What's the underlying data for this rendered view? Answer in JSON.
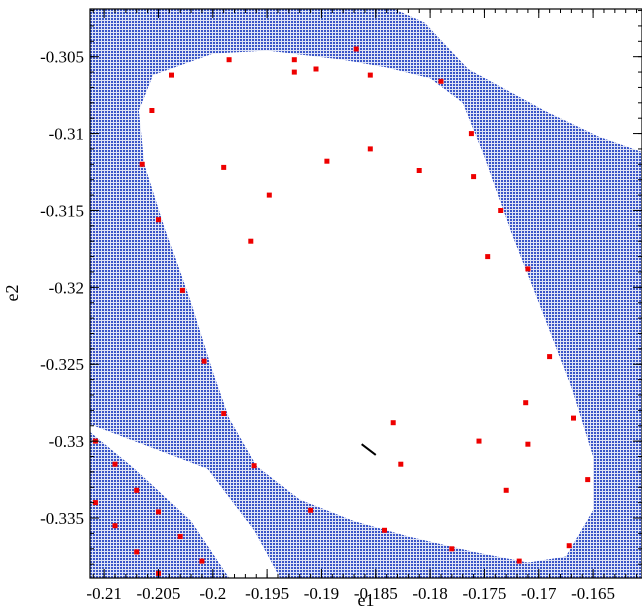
{
  "chart_data": {
    "type": "scatter",
    "title": "",
    "xlabel": "e1",
    "ylabel": "e2",
    "xlim": [
      -0.2113,
      -0.1605
    ],
    "ylim": [
      -0.3389,
      -0.3019
    ],
    "x_ticks": [
      -0.21,
      -0.205,
      -0.2,
      -0.195,
      -0.19,
      -0.185,
      -0.18,
      -0.175,
      -0.17,
      -0.165
    ],
    "x_tick_labels": [
      "-0.21",
      "-0.205",
      "-0.2",
      "-0.195",
      "-0.19",
      "-0.185",
      "-0.18",
      "-0.175",
      "-0.17",
      "-0.165"
    ],
    "y_ticks": [
      -0.305,
      -0.31,
      -0.315,
      -0.32,
      -0.325,
      -0.33,
      -0.335
    ],
    "y_tick_labels": [
      "-0.305",
      "-0.31",
      "-0.315",
      "-0.32",
      "-0.325",
      "-0.33",
      "-0.335"
    ],
    "grid": false,
    "legend": "none",
    "colors": {
      "blue_region": "#3a55c8",
      "red_points": "#ee0000",
      "line": "#000000",
      "background": "#ffffff"
    },
    "series": [
      {
        "color": "#3a55c8",
        "marker": "dense-dot-fill",
        "regions": [
          {
            "role": "outer-filled-region",
            "polygon": [
              [
                -0.2113,
                -0.3019
              ],
              [
                -0.1833,
                -0.3019
              ],
              [
                -0.1805,
                -0.3028
              ],
              [
                -0.1765,
                -0.3058
              ],
              [
                -0.1695,
                -0.3085
              ],
              [
                -0.1645,
                -0.3102
              ],
              [
                -0.1605,
                -0.3112
              ],
              [
                -0.1605,
                -0.3389
              ],
              [
                -0.1938,
                -0.3389
              ],
              [
                -0.1962,
                -0.3358
              ],
              [
                -0.2005,
                -0.3318
              ],
              [
                -0.2113,
                -0.3289
              ]
            ]
          },
          {
            "role": "bottom-left-filled-region",
            "polygon": [
              [
                -0.2113,
                -0.3294
              ],
              [
                -0.2072,
                -0.3318
              ],
              [
                -0.202,
                -0.3352
              ],
              [
                -0.1985,
                -0.3389
              ],
              [
                -0.2113,
                -0.3389
              ]
            ]
          }
        ],
        "empty_regions": [
          {
            "role": "central-void",
            "polygon": [
              [
                -0.2055,
                -0.3062
              ],
              [
                -0.2,
                -0.3048
              ],
              [
                -0.195,
                -0.3046
              ],
              [
                -0.188,
                -0.3052
              ],
              [
                -0.184,
                -0.3057
              ],
              [
                -0.18,
                -0.3064
              ],
              [
                -0.177,
                -0.308
              ],
              [
                -0.175,
                -0.3115
              ],
              [
                -0.1725,
                -0.3165
              ],
              [
                -0.17,
                -0.321
              ],
              [
                -0.167,
                -0.3265
              ],
              [
                -0.165,
                -0.331
              ],
              [
                -0.165,
                -0.3345
              ],
              [
                -0.1675,
                -0.3375
              ],
              [
                -0.171,
                -0.3379
              ],
              [
                -0.176,
                -0.3372
              ],
              [
                -0.182,
                -0.3362
              ],
              [
                -0.187,
                -0.3352
              ],
              [
                -0.192,
                -0.3338
              ],
              [
                -0.196,
                -0.3316
              ],
              [
                -0.1985,
                -0.3285
              ],
              [
                -0.2,
                -0.3255
              ],
              [
                -0.202,
                -0.321
              ],
              [
                -0.2045,
                -0.316
              ],
              [
                -0.2063,
                -0.312
              ],
              [
                -0.2068,
                -0.3085
              ]
            ]
          },
          {
            "role": "top-right-void",
            "polygon": [
              [
                -0.1805,
                -0.3019
              ],
              [
                -0.168,
                -0.3019
              ],
              [
                -0.1645,
                -0.3019
              ],
              [
                -0.1605,
                -0.3019
              ],
              [
                -0.1605,
                -0.306
              ],
              [
                -0.164,
                -0.3051
              ],
              [
                -0.167,
                -0.304
              ],
              [
                -0.169,
                -0.303
              ],
              [
                -0.17,
                -0.3022
              ],
              [
                -0.172,
                -0.3019
              ],
              [
                -0.176,
                -0.3019
              ]
            ]
          }
        ]
      },
      {
        "color": "#ee0000",
        "marker": "square",
        "distribution": "approximate scatter along the central void boundary, diagonal bands at lower left, and isolated points inside the void",
        "points": [
          [
            -0.1868,
            -0.3045
          ],
          [
            -0.1925,
            -0.3052
          ],
          [
            -0.1985,
            -0.3052
          ],
          [
            -0.2038,
            -0.3062
          ],
          [
            -0.2056,
            -0.3085
          ],
          [
            -0.1925,
            -0.306
          ],
          [
            -0.1905,
            -0.3058
          ],
          [
            -0.1855,
            -0.3062
          ],
          [
            -0.179,
            -0.3066
          ],
          [
            -0.1762,
            -0.31
          ],
          [
            -0.1735,
            -0.315
          ],
          [
            -0.171,
            -0.3188
          ],
          [
            -0.169,
            -0.3245
          ],
          [
            -0.1668,
            -0.3285
          ],
          [
            -0.1655,
            -0.3325
          ],
          [
            -0.1672,
            -0.3368
          ],
          [
            -0.1718,
            -0.3378
          ],
          [
            -0.178,
            -0.337
          ],
          [
            -0.1842,
            -0.3358
          ],
          [
            -0.191,
            -0.3345
          ],
          [
            -0.1962,
            -0.3316
          ],
          [
            -0.199,
            -0.3282
          ],
          [
            -0.2008,
            -0.3248
          ],
          [
            -0.2028,
            -0.3202
          ],
          [
            -0.205,
            -0.3156
          ],
          [
            -0.2065,
            -0.312
          ],
          [
            -0.1855,
            -0.311
          ],
          [
            -0.181,
            -0.3124
          ],
          [
            -0.171,
            -0.3302
          ],
          [
            -0.1834,
            -0.3288
          ],
          [
            -0.1948,
            -0.314
          ],
          [
            -0.199,
            -0.3122
          ],
          [
            -0.1965,
            -0.317
          ],
          [
            -0.1895,
            -0.3118
          ],
          [
            -0.176,
            -0.3128
          ],
          [
            -0.173,
            -0.3332
          ],
          [
            -0.1755,
            -0.33
          ],
          [
            -0.1827,
            -0.3315
          ],
          [
            -0.1712,
            -0.3275
          ],
          [
            -0.1747,
            -0.318
          ],
          [
            -0.2108,
            -0.33
          ],
          [
            -0.209,
            -0.3315
          ],
          [
            -0.207,
            -0.3332
          ],
          [
            -0.205,
            -0.3346
          ],
          [
            -0.203,
            -0.3362
          ],
          [
            -0.201,
            -0.3378
          ],
          [
            -0.2108,
            -0.334
          ],
          [
            -0.209,
            -0.3355
          ],
          [
            -0.207,
            -0.3372
          ],
          [
            -0.205,
            -0.3386
          ]
        ]
      },
      {
        "color": "#000000",
        "marker": "line",
        "points": [
          [
            -0.1863,
            -0.3302
          ],
          [
            -0.185,
            -0.3309
          ]
        ]
      }
    ]
  }
}
